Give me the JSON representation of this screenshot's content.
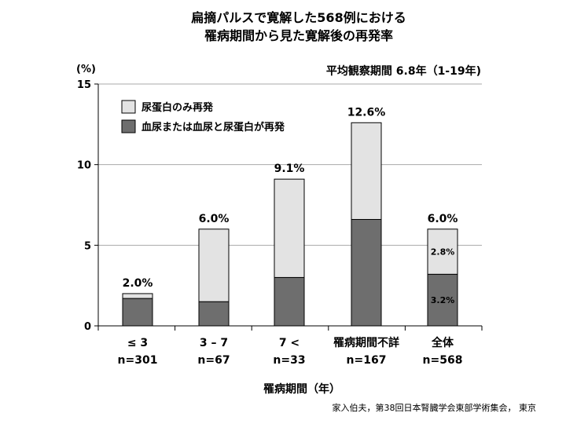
{
  "title_line1": "扁摘パルスで寛解した568例における",
  "title_line2": "罹病期間から見た寛解後の再発率",
  "observation_note": "平均観察期間 6.8年（1-19年)",
  "unit_label": "(%)",
  "source": "家入伯夫，第38回日本腎臓学会東部学術集会， 東京",
  "colors": {
    "proteinuria_only": "#e3e3e3",
    "hematuria_or_both": "#6e6e6e",
    "grid": "#aaaaaa"
  },
  "chart_data": {
    "type": "bar",
    "stacked": true,
    "xlabel": "罹病期間（年）",
    "ylabel": "(%)",
    "ylim": [
      0,
      15
    ],
    "yticks": [
      "0",
      "5",
      "10",
      "15"
    ],
    "grid": true,
    "legend_position": "top-left",
    "categories": [
      "≤ 3",
      "3 – 7",
      "7 <",
      "罹病期間不詳",
      "全体"
    ],
    "n_labels": [
      "n=301",
      "n=67",
      "n=33",
      "n=167",
      "n=568"
    ],
    "totals": [
      2.0,
      6.0,
      9.1,
      12.6,
      6.0
    ],
    "total_labels": [
      "2.0%",
      "6.0%",
      "9.1%",
      "12.6%",
      "6.0%"
    ],
    "series": [
      {
        "name": "血尿または血尿と尿蛋白が再発",
        "values": [
          1.7,
          1.5,
          3.0,
          6.6,
          3.2
        ],
        "labels": [
          "",
          "",
          "",
          "",
          "3.2%"
        ]
      },
      {
        "name": "尿蛋白のみ再発",
        "values": [
          0.3,
          4.5,
          6.1,
          6.0,
          2.8
        ],
        "labels": [
          "",
          "",
          "",
          "",
          "2.8%"
        ]
      }
    ]
  }
}
